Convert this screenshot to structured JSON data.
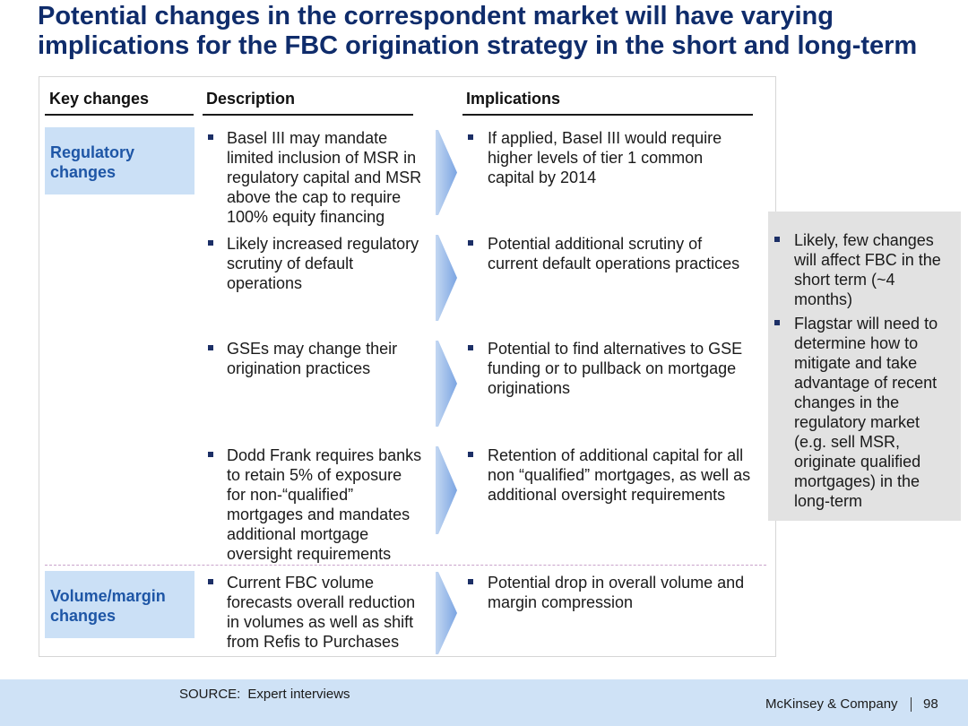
{
  "title": "Potential changes in the correspondent market will have varying\nimplications for the FBC origination strategy in the short and long-term",
  "table": {
    "headers": {
      "key_changes": "Key changes",
      "description": "Description",
      "implications": "Implications"
    },
    "sections": [
      {
        "label": "Regulatory\nchanges",
        "rows": [
          {
            "description": "Basel III may mandate\nlimited inclusion of MSR in\nregulatory capital and MSR\nabove the cap to require\n100% equity financing",
            "implication": "If applied, Basel III would require\nhigher levels of tier 1 common\ncapital by 2014"
          },
          {
            "description": "Likely increased regulatory\nscrutiny of default\noperations",
            "implication": "Potential additional scrutiny of\ncurrent default operations practices"
          },
          {
            "description": "GSEs may change their\norigination practices",
            "implication": "Potential to find alternatives to GSE\nfunding or to pullback on mortgage\noriginations"
          },
          {
            "description": "Dodd Frank requires banks\nto retain 5% of exposure\nfor non-“qualified”\nmortgages and mandates\nadditional mortgage\noversight requirements",
            "implication": "Retention of additional capital for all\nnon “qualified” mortgages, as well as\nadditional oversight requirements"
          }
        ]
      },
      {
        "label": "Volume/margin\nchanges",
        "rows": [
          {
            "description": "Current FBC volume\nforecasts overall reduction\nin volumes as well as shift\nfrom Refis to Purchases",
            "implication": "Potential drop in overall volume and\nmargin compression"
          }
        ]
      }
    ]
  },
  "summary": {
    "bullets": [
      "Likely, few changes\nwill affect FBC in the\nshort term (~4\nmonths)",
      "Flagstar will need to\ndetermine how to\nmitigate and take\nadvantage of recent\nchanges in the\nregulatory market\n(e.g. sell MSR,\noriginate qualified\nmortgages) in the\nlong-term"
    ]
  },
  "footer": {
    "source_label": "SOURCE:",
    "source": "Expert interviews",
    "company": "McKinsey & Company",
    "page_number": "98"
  },
  "icons": {
    "bullet": "square-bullet-icon",
    "row_arrow": "chevron-arrow-icon"
  },
  "colors": {
    "title": "#0f2c6b",
    "key_label": "#1e56a6",
    "key_box_fill": "#cbe0f6",
    "summary_fill": "#e2e2e2",
    "footer_fill": "#cfe2f6",
    "bullet": "#1c2f66",
    "arrow_light": "#c3d7f2",
    "arrow_dark": "#7ba5e2",
    "separator": "#c9a3cb"
  }
}
